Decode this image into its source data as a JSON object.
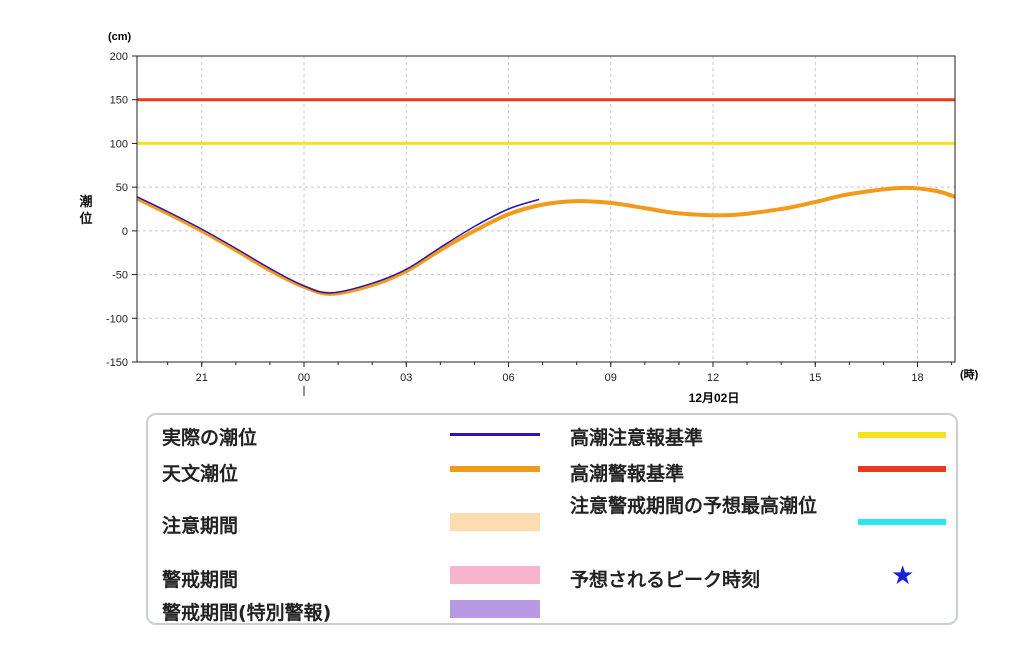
{
  "colors": {
    "observed": "#2a14b8",
    "astronomical": "#f39a1a",
    "warning_level": "#e93a1e",
    "advisory_level": "#f4e21e",
    "grid": "#c8c8c8",
    "advisory_period": "#fcdcb0",
    "warning_period": "#f8b4cc",
    "special_warning_period": "#b89ae4",
    "predicted_max": "#2de6ec",
    "peak_star": "#1a22d8"
  },
  "chart_data": {
    "type": "line",
    "y_unit_label": "(cm)",
    "x_unit_label": "(時)",
    "ylabel": "潮位",
    "date_label": "12月02日",
    "ylim": [
      -150,
      200
    ],
    "yticks": [
      -150,
      -100,
      -50,
      0,
      50,
      100,
      150,
      200
    ],
    "xlim_hours": [
      -4.9,
      19.1
    ],
    "xticks": [
      {
        "h": -3,
        "label": "21"
      },
      {
        "h": 0,
        "label": "00"
      },
      {
        "h": 3,
        "label": "03"
      },
      {
        "h": 6,
        "label": "06"
      },
      {
        "h": 9,
        "label": "09"
      },
      {
        "h": 12,
        "label": "12"
      },
      {
        "h": 15,
        "label": "15"
      },
      {
        "h": 18,
        "label": "18"
      }
    ],
    "reference_lines": [
      {
        "name": "高潮警報基準",
        "value": 150
      },
      {
        "name": "高潮注意報基準",
        "value": 100
      }
    ],
    "series": [
      {
        "name": "天文潮位",
        "x": [
          -4.9,
          -4,
          -3,
          -2,
          -1,
          0,
          0.8,
          2,
          3,
          4,
          5,
          6,
          7,
          8,
          9,
          10,
          11,
          12.5,
          14,
          15,
          16,
          17.5,
          18.5,
          19.1
        ],
        "y": [
          37,
          20,
          0,
          -22,
          -45,
          -64,
          -72,
          -62,
          -46,
          -22,
          0,
          19,
          30,
          34,
          32,
          26,
          20,
          18,
          25,
          33,
          42,
          49,
          46,
          39
        ]
      },
      {
        "name": "実際の潮位",
        "x": [
          -4.9,
          -4,
          -3,
          -2,
          -1,
          0,
          0.8,
          2,
          3,
          4,
          5,
          6,
          6.9
        ],
        "y": [
          39,
          22,
          2,
          -20,
          -43,
          -63,
          -71,
          -60,
          -44,
          -19,
          5,
          25,
          36
        ]
      }
    ]
  },
  "legend": {
    "observed": "実際の潮位",
    "astronomical": "天文潮位",
    "advisory_period": "注意期間",
    "warning_period": "警戒期間",
    "special_warning_period": "警戒期間(特別警報)",
    "advisory_level": "高潮注意報基準",
    "warning_level": "高潮警報基準",
    "predicted_max": "注意警戒期間の予想最高潮位",
    "peak_time": "予想されるピーク時刻",
    "star": "★"
  }
}
